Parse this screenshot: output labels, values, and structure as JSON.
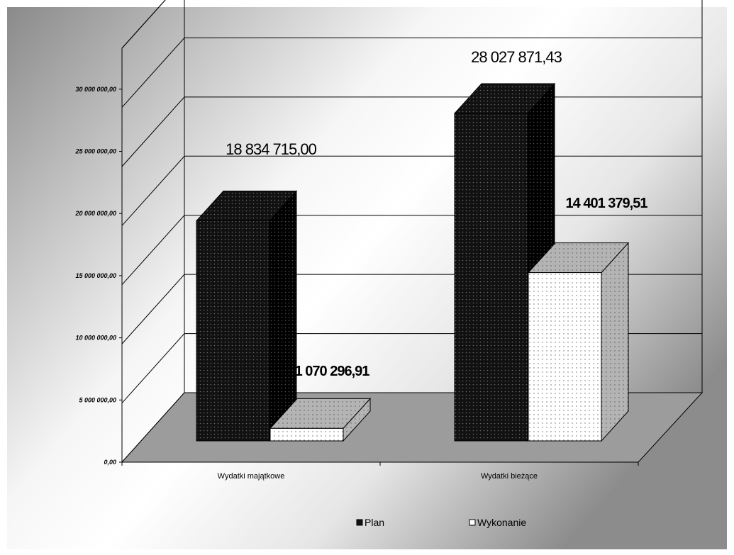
{
  "chart_data": {
    "type": "bar",
    "categories": [
      "Wydatki majątkowe",
      "Wydatki bieżące"
    ],
    "series": [
      {
        "name": "Plan",
        "values": [
          18834715.0,
          28027871.43
        ],
        "color": "#111111",
        "labels": [
          "18 834 715,00",
          "28 027 871,43"
        ]
      },
      {
        "name": "Wykonanie",
        "values": [
          1070296.91,
          14401379.51
        ],
        "color": "#ffffff",
        "labels": [
          "1 070 296,91",
          "14 401 379,51"
        ]
      }
    ],
    "y_ticks": [
      "0,00",
      "5 000 000,00",
      "10 000 000,00",
      "15 000 000,00",
      "20 000 000,00",
      "25 000 000,00",
      "30 000 000,00"
    ],
    "ylim": [
      0,
      35000000
    ],
    "grid": true,
    "legend": "bottom",
    "three_d": true
  }
}
